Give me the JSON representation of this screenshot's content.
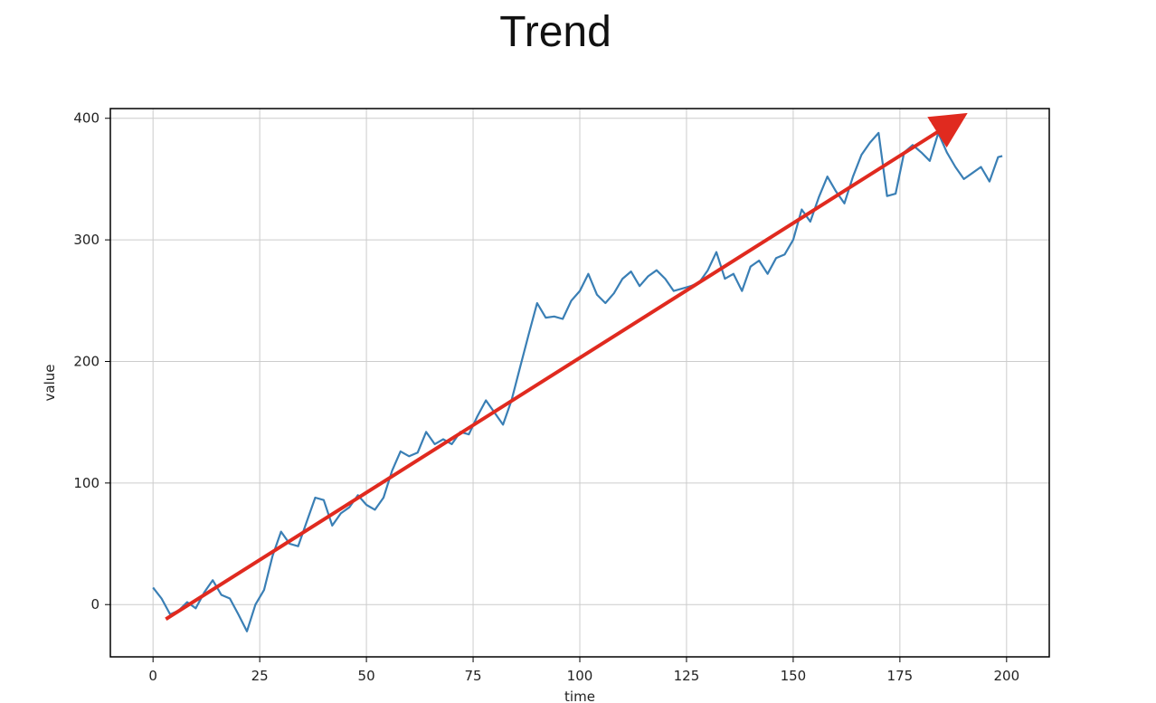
{
  "chart_data": {
    "type": "line",
    "title": "Trend",
    "xlabel": "time",
    "ylabel": "value",
    "xlim": [
      -10,
      210
    ],
    "ylim": [
      -43,
      408
    ],
    "xticks": [
      0,
      25,
      50,
      75,
      100,
      125,
      150,
      175,
      200
    ],
    "yticks": [
      0,
      100,
      200,
      300,
      400
    ],
    "grid": true,
    "legend": "none",
    "colors": {
      "series": "#3a7fb5",
      "trend_arrow": "#e02a1f",
      "grid": "#cccccc",
      "frame": "#000000"
    },
    "series": [
      {
        "x": [
          0,
          2,
          4,
          6,
          8,
          10,
          12,
          14,
          16,
          18,
          20,
          22,
          24,
          26,
          28,
          30,
          32,
          34,
          36,
          38,
          40,
          42,
          44,
          46,
          48,
          50,
          52,
          54,
          56,
          58,
          60,
          62,
          64,
          66,
          68,
          70,
          72,
          74,
          76,
          78,
          80,
          82,
          84,
          86,
          88,
          90,
          92,
          94,
          96,
          98,
          100,
          102,
          104,
          106,
          108,
          110,
          112,
          114,
          116,
          118,
          120,
          122,
          124,
          126,
          128,
          130,
          132,
          134,
          136,
          138,
          140,
          142,
          144,
          146,
          148,
          150,
          152,
          154,
          156,
          158,
          160,
          162,
          164,
          166,
          168,
          170,
          172,
          174,
          176,
          178,
          180,
          182,
          184,
          186,
          188,
          190,
          192,
          194,
          196,
          198,
          199
        ],
        "values": [
          14,
          5,
          -8,
          -5,
          2,
          -3,
          10,
          20,
          8,
          5,
          -8,
          -22,
          0,
          12,
          40,
          60,
          50,
          48,
          68,
          88,
          86,
          65,
          75,
          80,
          90,
          82,
          78,
          88,
          110,
          126,
          122,
          125,
          142,
          132,
          136,
          132,
          142,
          140,
          155,
          168,
          158,
          148,
          168,
          195,
          222,
          248,
          236,
          237,
          235,
          250,
          258,
          272,
          255,
          248,
          256,
          268,
          274,
          262,
          270,
          275,
          268,
          258,
          260,
          262,
          265,
          275,
          290,
          268,
          272,
          258,
          278,
          283,
          272,
          285,
          288,
          300,
          325,
          315,
          335,
          352,
          340,
          330,
          352,
          370,
          380,
          388,
          336,
          338,
          372,
          378,
          372,
          365,
          388,
          372,
          360,
          350,
          355,
          360,
          348,
          368,
          369
        ]
      }
    ],
    "trend_arrow": {
      "from": [
        3,
        -12
      ],
      "to": [
        188,
        398
      ]
    }
  }
}
